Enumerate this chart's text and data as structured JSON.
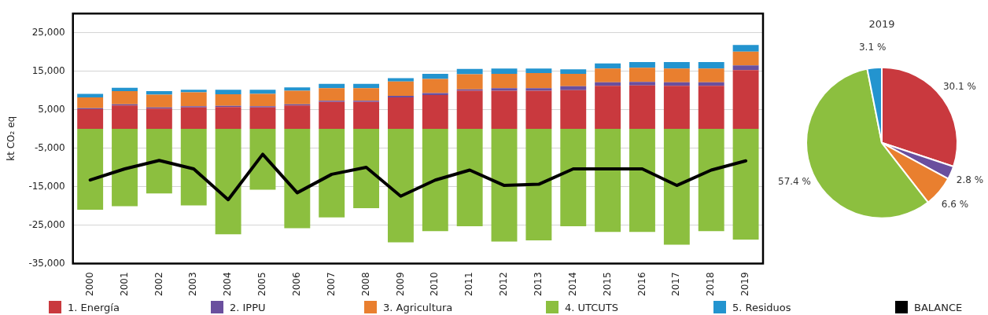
{
  "chart_data": [
    {
      "type": "bar",
      "stacked": true,
      "ylabel": "kt CO₂ eq",
      "categories": [
        "2000",
        "2001",
        "2002",
        "2003",
        "2004",
        "2005",
        "2006",
        "2007",
        "2008",
        "2009",
        "2010",
        "2011",
        "2012",
        "2013",
        "2014",
        "2015",
        "2016",
        "2017",
        "2018",
        "2019"
      ],
      "series": [
        {
          "name": "1. Energía",
          "color": "#c9393e",
          "values": [
            5100,
            6100,
            5300,
            5600,
            5700,
            5600,
            6100,
            7000,
            7000,
            8200,
            8800,
            9900,
            9900,
            9900,
            10100,
            11200,
            11300,
            11200,
            11200,
            15300
          ]
        },
        {
          "name": "2. IPPU",
          "color": "#6a4f9e",
          "values": [
            300,
            300,
            300,
            300,
            300,
            300,
            300,
            300,
            300,
            400,
            500,
            400,
            700,
            700,
            1000,
            900,
            900,
            900,
            900,
            1200
          ]
        },
        {
          "name": "3. Agricultura",
          "color": "#e97f2f",
          "values": [
            2800,
            3400,
            3300,
            3600,
            3000,
            3200,
            3500,
            3300,
            3300,
            3700,
            3700,
            3900,
            3700,
            3900,
            3200,
            3600,
            3700,
            3600,
            3600,
            3600
          ]
        },
        {
          "name": "4. UTCUTS",
          "color": "#8cbf3f",
          "values": [
            -21000,
            -20100,
            -16800,
            -19900,
            -27400,
            -15800,
            -25800,
            -23000,
            -20600,
            -29500,
            -26600,
            -25300,
            -29300,
            -29000,
            -25300,
            -26800,
            -26800,
            -30100,
            -26600,
            -28800
          ]
        },
        {
          "name": "5. Residuos",
          "color": "#2394cf",
          "values": [
            900,
            900,
            900,
            700,
            1200,
            1100,
            900,
            1100,
            1100,
            900,
            1300,
            1400,
            1400,
            1200,
            1200,
            1300,
            1500,
            1700,
            1700,
            1700
          ]
        },
        {
          "name": "BALANCE",
          "type": "line",
          "color": "#000000",
          "values": [
            -13300,
            -10400,
            -8200,
            -10400,
            -18400,
            -6600,
            -16600,
            -11800,
            -10000,
            -17500,
            -13300,
            -10700,
            -14700,
            -14400,
            -10400,
            -10400,
            -10400,
            -14700,
            -10700,
            -8300
          ]
        }
      ],
      "ylim": [
        -35000,
        30000
      ],
      "yticks": [
        {
          "value": -35000,
          "label": "-35,000"
        },
        {
          "value": -25000,
          "label": "-25,000"
        },
        {
          "value": -15000,
          "label": "-15,000"
        },
        {
          "value": -5000,
          "label": "-5,000"
        },
        {
          "value": 5000,
          "label": "5,000"
        },
        {
          "value": 15000,
          "label": "15,000"
        },
        {
          "value": 25000,
          "label": "25,000"
        }
      ],
      "grid": "y",
      "legend": "bottom",
      "marker": "none"
    },
    {
      "type": "pie",
      "title": "2019",
      "categories": [
        null,
        null,
        null,
        null,
        null
      ],
      "values": [
        30.1,
        2.8,
        6.6,
        57.4,
        3.1
      ],
      "colors": [
        "#c9393e",
        "#6a4f9e",
        "#e97f2f",
        "#8cbf3f",
        "#2394cf"
      ],
      "value_labels": [
        "30.1 %",
        "2.8 %",
        "6.6 %",
        "57.4 %",
        "3.1 %"
      ],
      "legend": false
    }
  ]
}
